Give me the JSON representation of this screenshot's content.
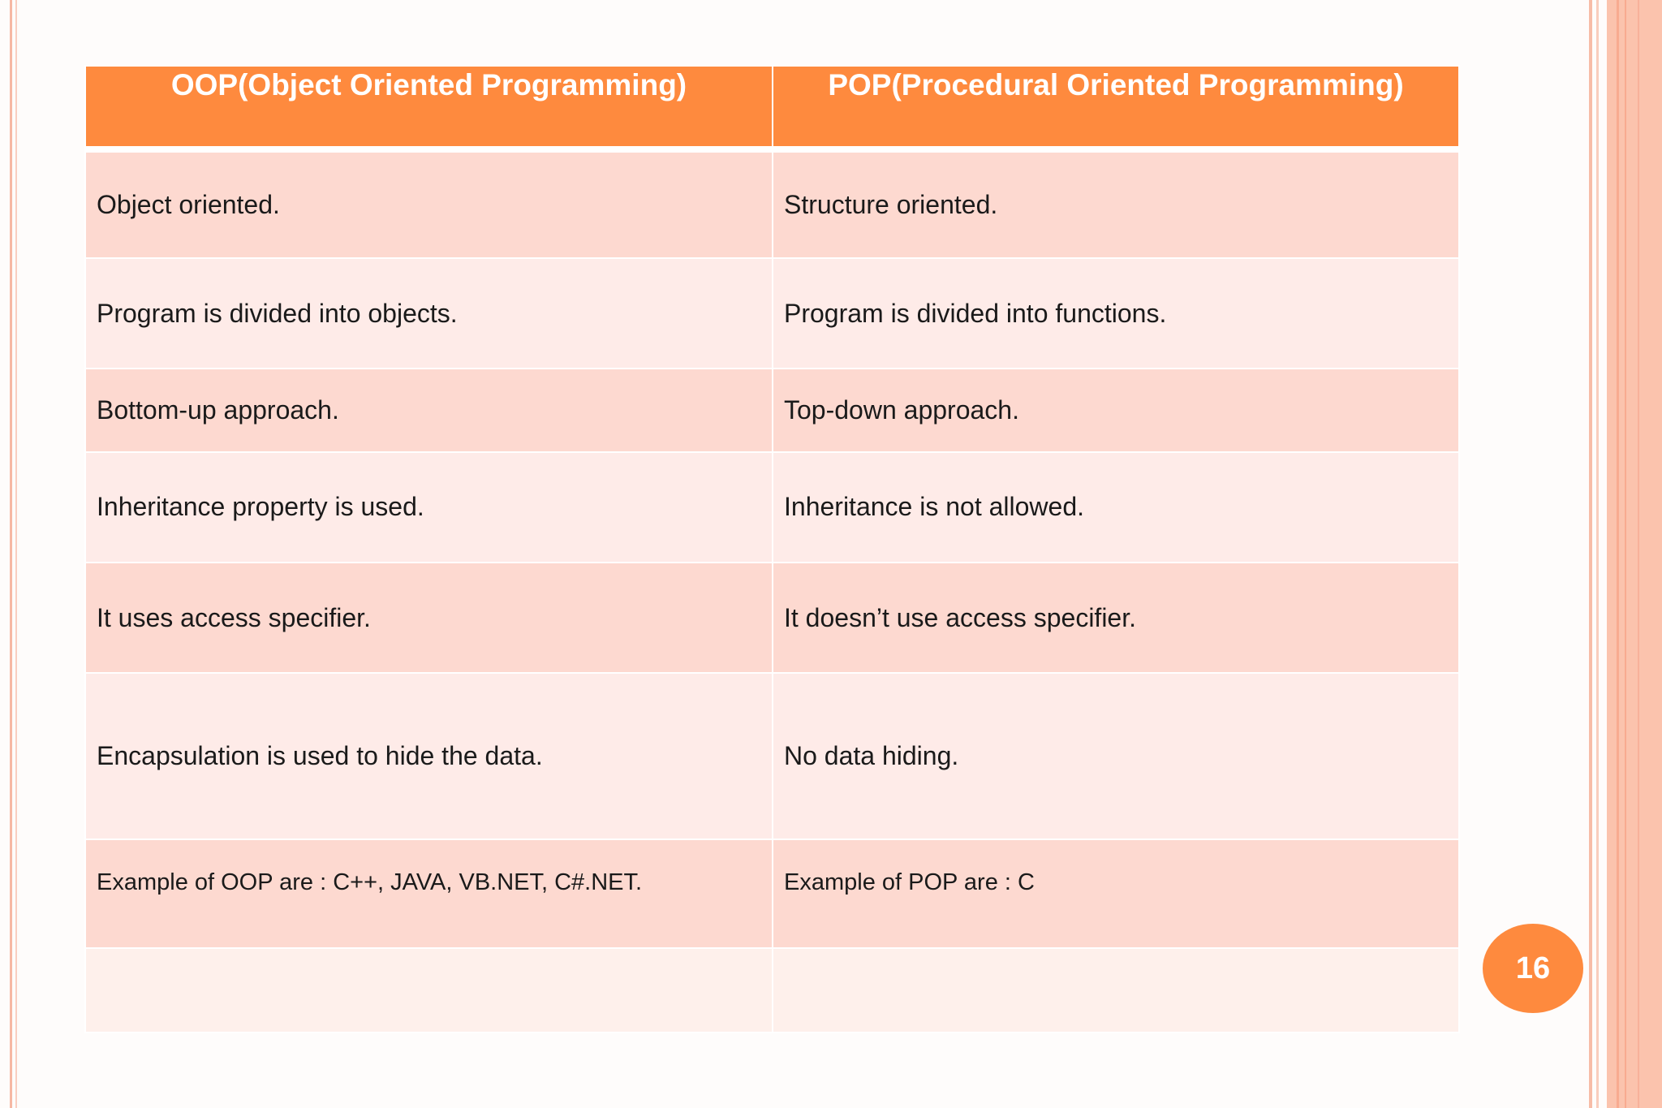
{
  "table": {
    "headers": [
      "OOP(Object Oriented Programming)",
      "POP(Procedural Oriented Programming)"
    ],
    "rows": [
      [
        "Object oriented.",
        "Structure oriented."
      ],
      [
        "Program is divided into objects.",
        "Program is divided into functions."
      ],
      [
        "Bottom-up approach.",
        "Top-down approach."
      ],
      [
        "Inheritance property is used.",
        "Inheritance is not allowed."
      ],
      [
        "It uses access specifier.",
        "It doesn’t use access specifier."
      ],
      [
        "Encapsulation is used to hide the data.",
        "No data hiding."
      ],
      [
        "Example of OOP are : C++, JAVA, VB.NET, C#.NET.",
        "Example of POP are : C"
      ],
      [
        "",
        ""
      ]
    ]
  },
  "page_number": "16",
  "colors": {
    "header_bg": "#fe8a3e",
    "row_dark": "#fdd9d0",
    "row_light": "#feebe8",
    "border_accent": "#fbc3ad"
  }
}
